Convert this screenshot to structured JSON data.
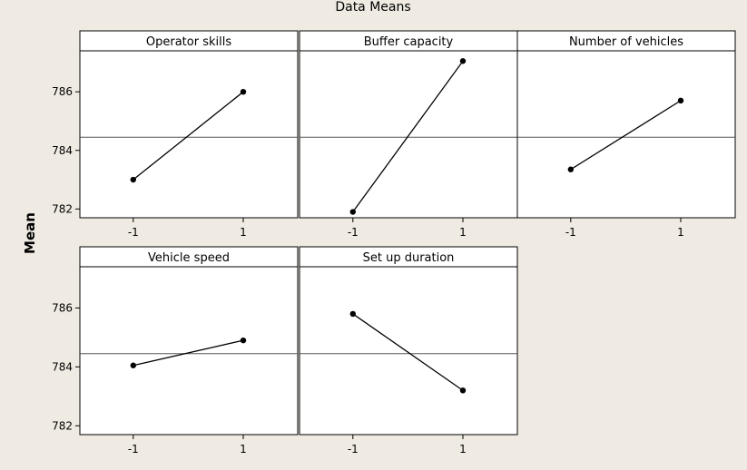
{
  "chart_data": {
    "type": "line",
    "title": "Data Means",
    "ylabel": "Mean",
    "ylim": [
      781.7,
      787.4
    ],
    "yticks": [
      782,
      784,
      786
    ],
    "xticks": [
      "-1",
      "1"
    ],
    "reference_line": 784.45,
    "colors": {
      "background": "#efebe2",
      "panel": "#ffffff",
      "line": "#000000",
      "reference": "#555555"
    },
    "panels": [
      {
        "name": "Operator skills",
        "x": [
          "-1",
          "1"
        ],
        "values": [
          783.0,
          786.0
        ]
      },
      {
        "name": "Buffer capacity",
        "x": [
          "-1",
          "1"
        ],
        "values": [
          781.9,
          787.05
        ]
      },
      {
        "name": "Number of vehicles",
        "x": [
          "-1",
          "1"
        ],
        "values": [
          783.35,
          785.7
        ]
      },
      {
        "name": "Vehicle speed",
        "x": [
          "-1",
          "1"
        ],
        "values": [
          784.05,
          784.9
        ]
      },
      {
        "name": "Set up duration",
        "x": [
          "-1",
          "1"
        ],
        "values": [
          785.8,
          783.2
        ]
      }
    ]
  }
}
